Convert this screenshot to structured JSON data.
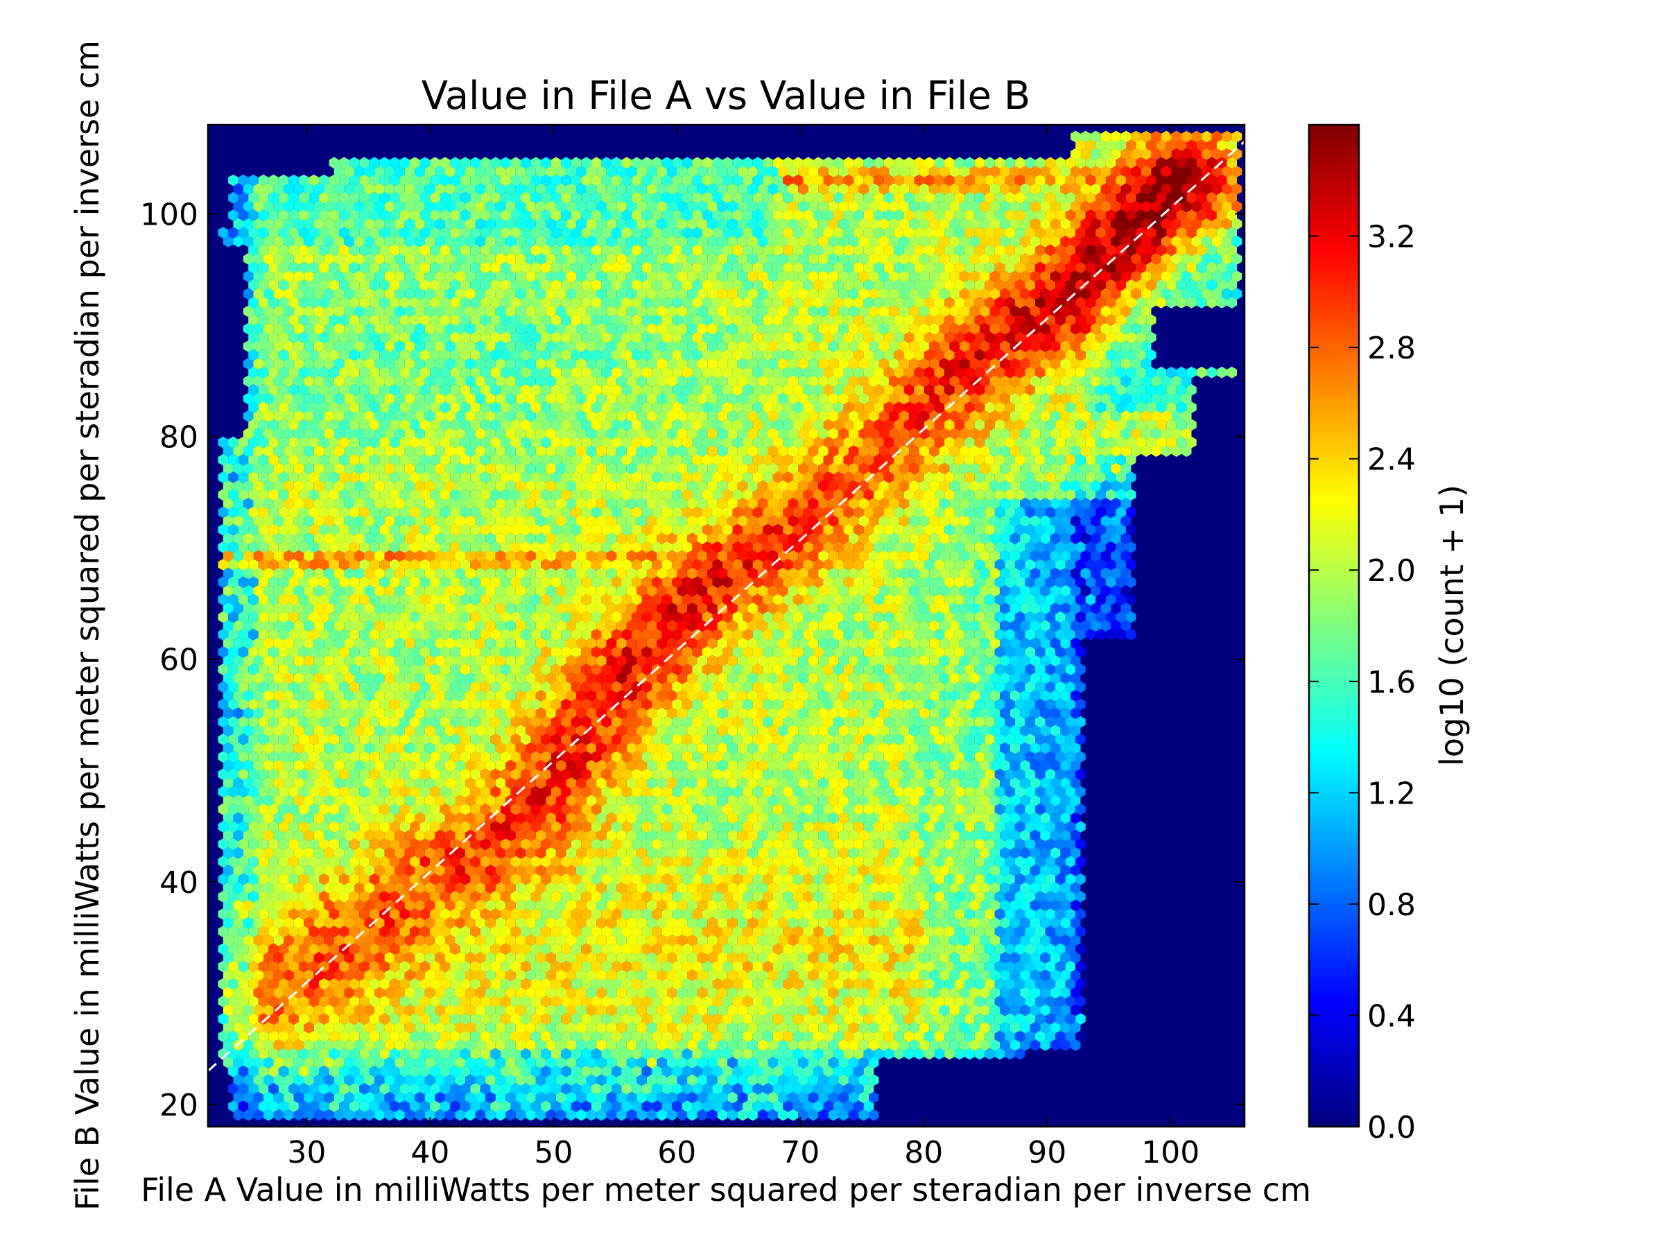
{
  "chart_data": {
    "type": "heatmap",
    "subtype": "hexbin",
    "title": "Value in File A vs Value in File B",
    "xlabel": "File A Value in milliWatts per meter squared per steradian per inverse cm",
    "ylabel": "File B Value in milliWatts per meter squared per steradian per inverse cm",
    "xlim": [
      22,
      106
    ],
    "ylim": [
      18,
      108
    ],
    "xticks": [
      30,
      40,
      50,
      60,
      70,
      80,
      90,
      100
    ],
    "yticks": [
      20,
      40,
      60,
      80,
      100
    ],
    "grid": false,
    "colormap": "jet",
    "background_color": "#00007f",
    "colorbar": {
      "label": "log10 (count + 1)",
      "range": [
        0.0,
        3.6
      ],
      "ticks": [
        "0.0",
        "0.4",
        "0.8",
        "1.2",
        "1.6",
        "2.0",
        "2.4",
        "2.8",
        "3.2"
      ],
      "tick_values": [
        0.0,
        0.4,
        0.8,
        1.2,
        1.6,
        2.0,
        2.4,
        2.8,
        3.2
      ]
    },
    "reference_line": {
      "style": "dashed",
      "color": "#ffffff",
      "x": [
        22,
        106
      ],
      "y": [
        23,
        106.5
      ]
    },
    "density_features": {
      "bulk_level": 2.0,
      "diagonal_ridge": [
        {
          "x": 28,
          "y": 30,
          "value": 2.8
        },
        {
          "x": 40,
          "y": 40,
          "value": 2.9
        },
        {
          "x": 48,
          "y": 46,
          "value": 3.0
        },
        {
          "x": 56,
          "y": 59,
          "value": 3.1
        },
        {
          "x": 62,
          "y": 66,
          "value": 3.1
        },
        {
          "x": 67,
          "y": 70,
          "value": 3.0
        },
        {
          "x": 75,
          "y": 77,
          "value": 2.8
        },
        {
          "x": 84,
          "y": 87,
          "value": 3.1
        },
        {
          "x": 91,
          "y": 92,
          "value": 3.3
        },
        {
          "x": 101,
          "y": 103,
          "value": 3.6
        }
      ],
      "horizontal_band": {
        "y": 69,
        "value": 2.6
      },
      "top_band": {
        "y": 103,
        "value": 2.6
      }
    }
  }
}
